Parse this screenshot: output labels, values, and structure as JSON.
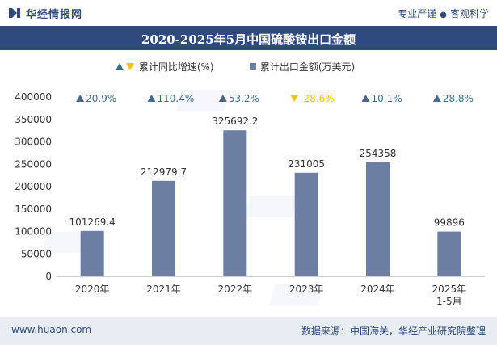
{
  "header": {
    "logo_text": "华经情报网",
    "tagline_a": "专业严谨",
    "tagline_sep": "●",
    "tagline_b": "客观科学"
  },
  "title": "2020-2025年5月中国硫酸铵出口金额",
  "legend": {
    "growth": "累计同比增速(%)",
    "export": "累计出口金额(万美元)"
  },
  "colors": {
    "bar": "#6d7ea3",
    "up": "#3a6d8c",
    "down": "#f2c200",
    "brand": "#2f4a7f"
  },
  "chart_data": {
    "type": "bar",
    "categories": [
      "2020年",
      "2021年",
      "2022年",
      "2023年",
      "2024年",
      "2025年\n1-5月"
    ],
    "ylim": [
      0,
      400000
    ],
    "yticks": [
      0,
      50000,
      100000,
      150000,
      200000,
      250000,
      300000,
      350000,
      400000
    ],
    "series": [
      {
        "name": "累计出口金额(万美元)",
        "values": [
          101269.4,
          212979.7,
          325692.2,
          231005,
          254358,
          99896
        ],
        "labels": [
          "101269.4",
          "212979.7",
          "325692.2",
          "231005",
          "254358",
          "99896"
        ]
      },
      {
        "name": "累计同比增速(%)",
        "values": [
          20.9,
          110.4,
          53.2,
          -28.6,
          10.1,
          28.8
        ],
        "labels": [
          "20.9%",
          "110.4%",
          "53.2%",
          "-28.6%",
          "10.1%",
          "28.8%"
        ]
      }
    ]
  },
  "footer": {
    "site": "www.huaon.com",
    "source": "数据来源：中国海关，华经产业研究院整理"
  }
}
